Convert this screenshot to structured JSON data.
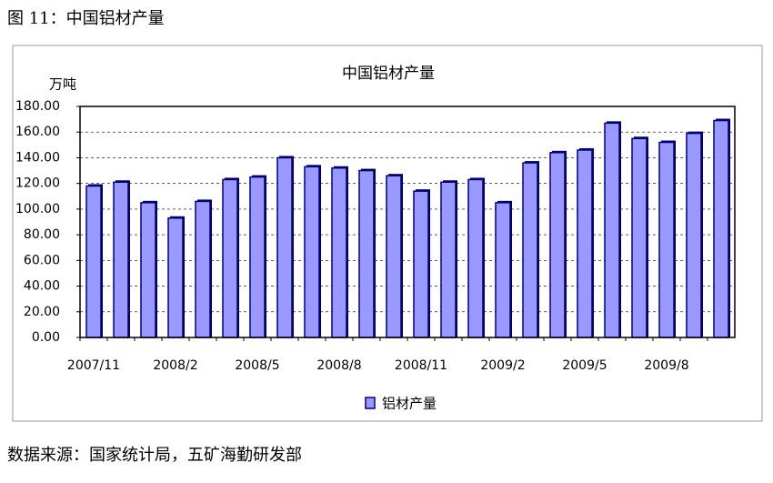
{
  "heading": "图 11：中国铝材产量",
  "source": "数据来源：国家统计局，五矿海勤研发部",
  "chart_data": {
    "type": "bar",
    "title": "中国铝材产量",
    "y_label": "万吨",
    "categories": [
      "2007/11",
      null,
      null,
      "2008/2",
      null,
      null,
      "2008/5",
      null,
      null,
      "2008/8",
      null,
      null,
      "2008/11",
      null,
      null,
      "2009/2",
      null,
      null,
      "2009/5",
      null,
      null,
      "2009/8",
      null,
      null
    ],
    "series": [
      {
        "name": "铝材产量",
        "color": "#9999ff",
        "values": [
          118,
          121,
          105,
          93,
          106,
          123,
          125,
          140,
          133,
          132,
          130,
          126,
          114,
          121,
          123,
          105,
          136,
          144,
          146,
          167,
          155,
          152,
          159,
          169
        ]
      }
    ],
    "ylim": [
      0,
      180
    ],
    "yticks": [
      {
        "value": 0,
        "label": "0.00"
      },
      {
        "value": 20,
        "label": "20.00"
      },
      {
        "value": 40,
        "label": "40.00"
      },
      {
        "value": 60,
        "label": "60.00"
      },
      {
        "value": 80,
        "label": "80.00"
      },
      {
        "value": 100,
        "label": "100.00"
      },
      {
        "value": 120,
        "label": "120.00"
      },
      {
        "value": 140,
        "label": "140.00"
      },
      {
        "value": 160,
        "label": "160.00"
      },
      {
        "value": 180,
        "label": "180.00"
      }
    ],
    "grid": true,
    "legend": "bottom"
  }
}
